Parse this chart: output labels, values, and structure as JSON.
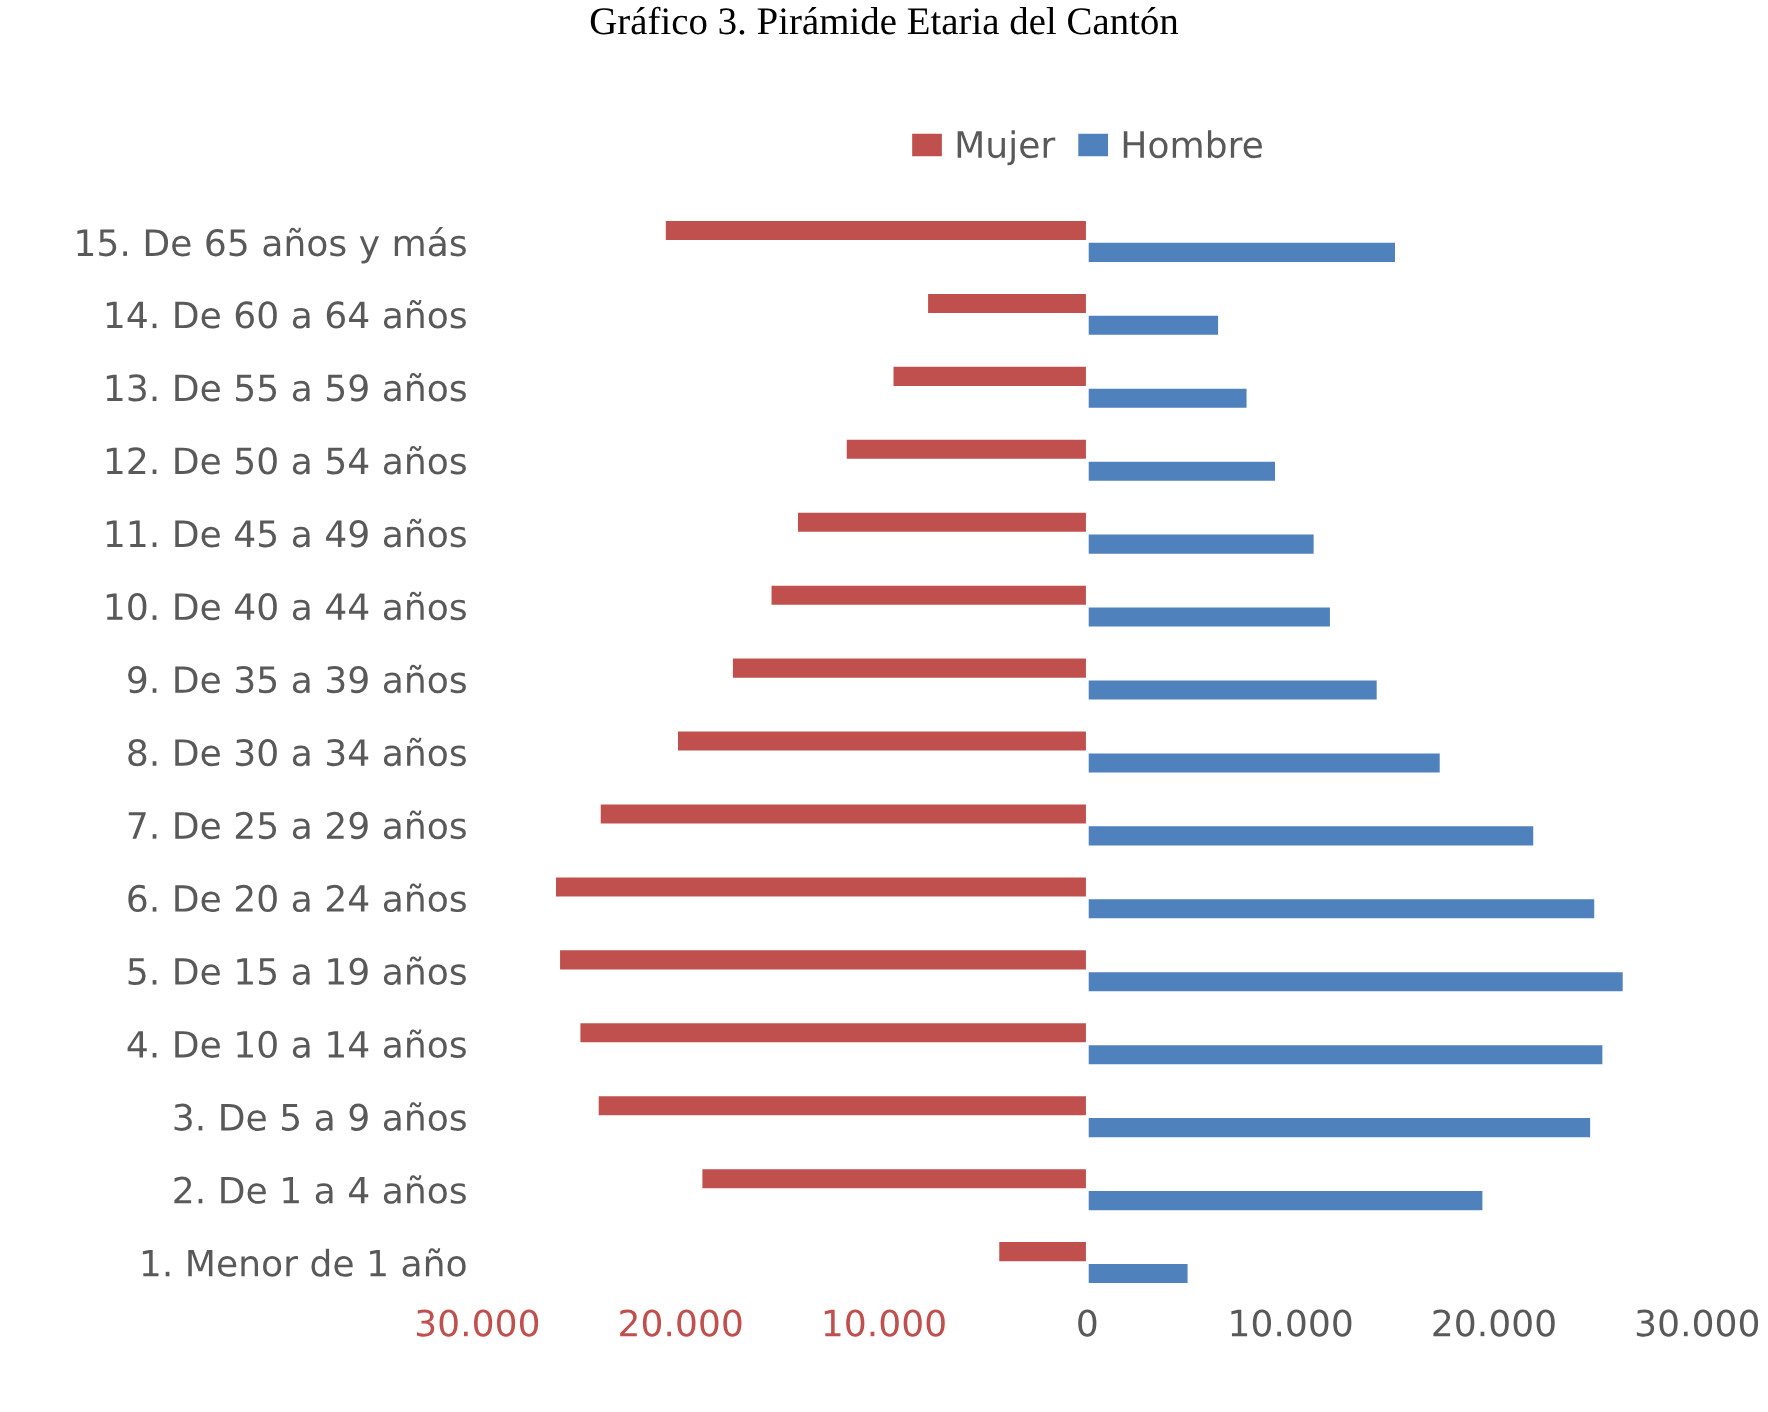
{
  "chart_data": {
    "type": "bar",
    "orientation": "horizontal",
    "title": "Gráfico 3. Pirámide Etaria del Cantón",
    "categories": [
      "15. De 65 años y más",
      "14. De 60 a 64 años",
      "13. De 55 a 59 años",
      "12. De 50 a 54 años",
      "11. De 45 a 49 años",
      "10. De 40 a 44 años",
      "9. De 35 a 39 años",
      "8. De 30 a 34 años",
      "7. De 25 a 29 años",
      "6. De 20 a 24 años",
      "5. De 15 a 19 años",
      "4. De 10 a 14 años",
      "3. De 5 a 9 años",
      "2. De 1 a 4 años",
      "1. Menor de 1 año"
    ],
    "series": [
      {
        "name": "Mujer",
        "color": "#c0504d",
        "values": [
          -20800,
          -7900,
          -9600,
          -11900,
          -14300,
          -15600,
          -17500,
          -20200,
          -24000,
          -26200,
          -26000,
          -25000,
          -24100,
          -19000,
          -4400
        ]
      },
      {
        "name": "Hombre",
        "color": "#4f81bd",
        "values": [
          15200,
          6500,
          7900,
          9300,
          11200,
          12000,
          14300,
          17400,
          22000,
          25000,
          26400,
          25400,
          24800,
          19500,
          5000
        ]
      }
    ],
    "xlim": [
      -30000,
      30000
    ],
    "xticks": [
      {
        "value": -30000,
        "label": "30.000"
      },
      {
        "value": -20000,
        "label": "20.000"
      },
      {
        "value": -10000,
        "label": "10.000"
      },
      0,
      {
        "value": 10000,
        "label": "10.000"
      },
      {
        "value": 20000,
        "label": "20.000"
      },
      {
        "value": 30000,
        "label": "30.000"
      }
    ],
    "grid": false,
    "legend": "top"
  }
}
